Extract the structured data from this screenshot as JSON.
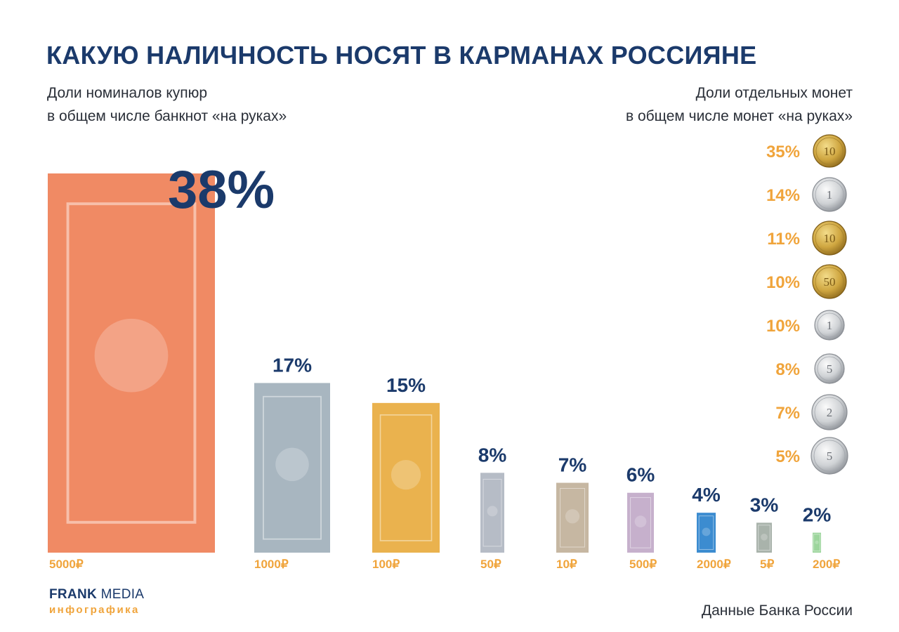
{
  "title": "КАКУЮ НАЛИЧНОСТЬ НОСЯТ В КАРМАНАХ РОССИЯНЕ",
  "subtitle_left": [
    "Доли номиналов купюр",
    "в общем числе банкнот «на руках»"
  ],
  "subtitle_right": [
    "Доли отдельных монет",
    "в общем числе монет «на руках»"
  ],
  "footer": {
    "brand_bold": "FRANK",
    "brand_rest": "MEDIA",
    "brand_sub": "инфографика",
    "source": "Данные Банка России"
  },
  "colors": {
    "title": "#1b3a6b",
    "banknote_value": "#1b3a6b",
    "coin_value": "#f0a43b",
    "denomination_label": "#f0a43b"
  },
  "chart_data": [
    {
      "type": "bar",
      "title": "Доли номиналов купюр в общем числе банкнот «на руках»",
      "categories": [
        "5000₽",
        "1000₽",
        "100₽",
        "50₽",
        "10₽",
        "500₽",
        "2000₽",
        "5₽",
        "200₽"
      ],
      "values": [
        38,
        17,
        15,
        8,
        7,
        6,
        4,
        3,
        2
      ],
      "value_labels": [
        "38%",
        "17%",
        "15%",
        "8%",
        "7%",
        "6%",
        "4%",
        "3%",
        "2%"
      ],
      "note_colors": [
        "#f08a64",
        "#a8b6c0",
        "#eab24e",
        "#b6bcc6",
        "#c6b7a2",
        "#c6b0cc",
        "#3c8cd0",
        "#a9b3ab",
        "#9cd59c"
      ]
    },
    {
      "type": "table",
      "title": "Доли отдельных монет в общем числе монет «на руках»",
      "values": [
        35,
        14,
        11,
        10,
        10,
        8,
        7,
        5
      ],
      "value_labels": [
        "35%",
        "14%",
        "11%",
        "10%",
        "10%",
        "8%",
        "7%",
        "5%"
      ],
      "coin_labels": [
        "10",
        "1",
        "10",
        "50",
        "1",
        "5",
        "2",
        "5"
      ],
      "coin_colors": [
        "gold",
        "silver",
        "gold",
        "gold",
        "silver",
        "silver",
        "silver",
        "silver"
      ]
    }
  ]
}
